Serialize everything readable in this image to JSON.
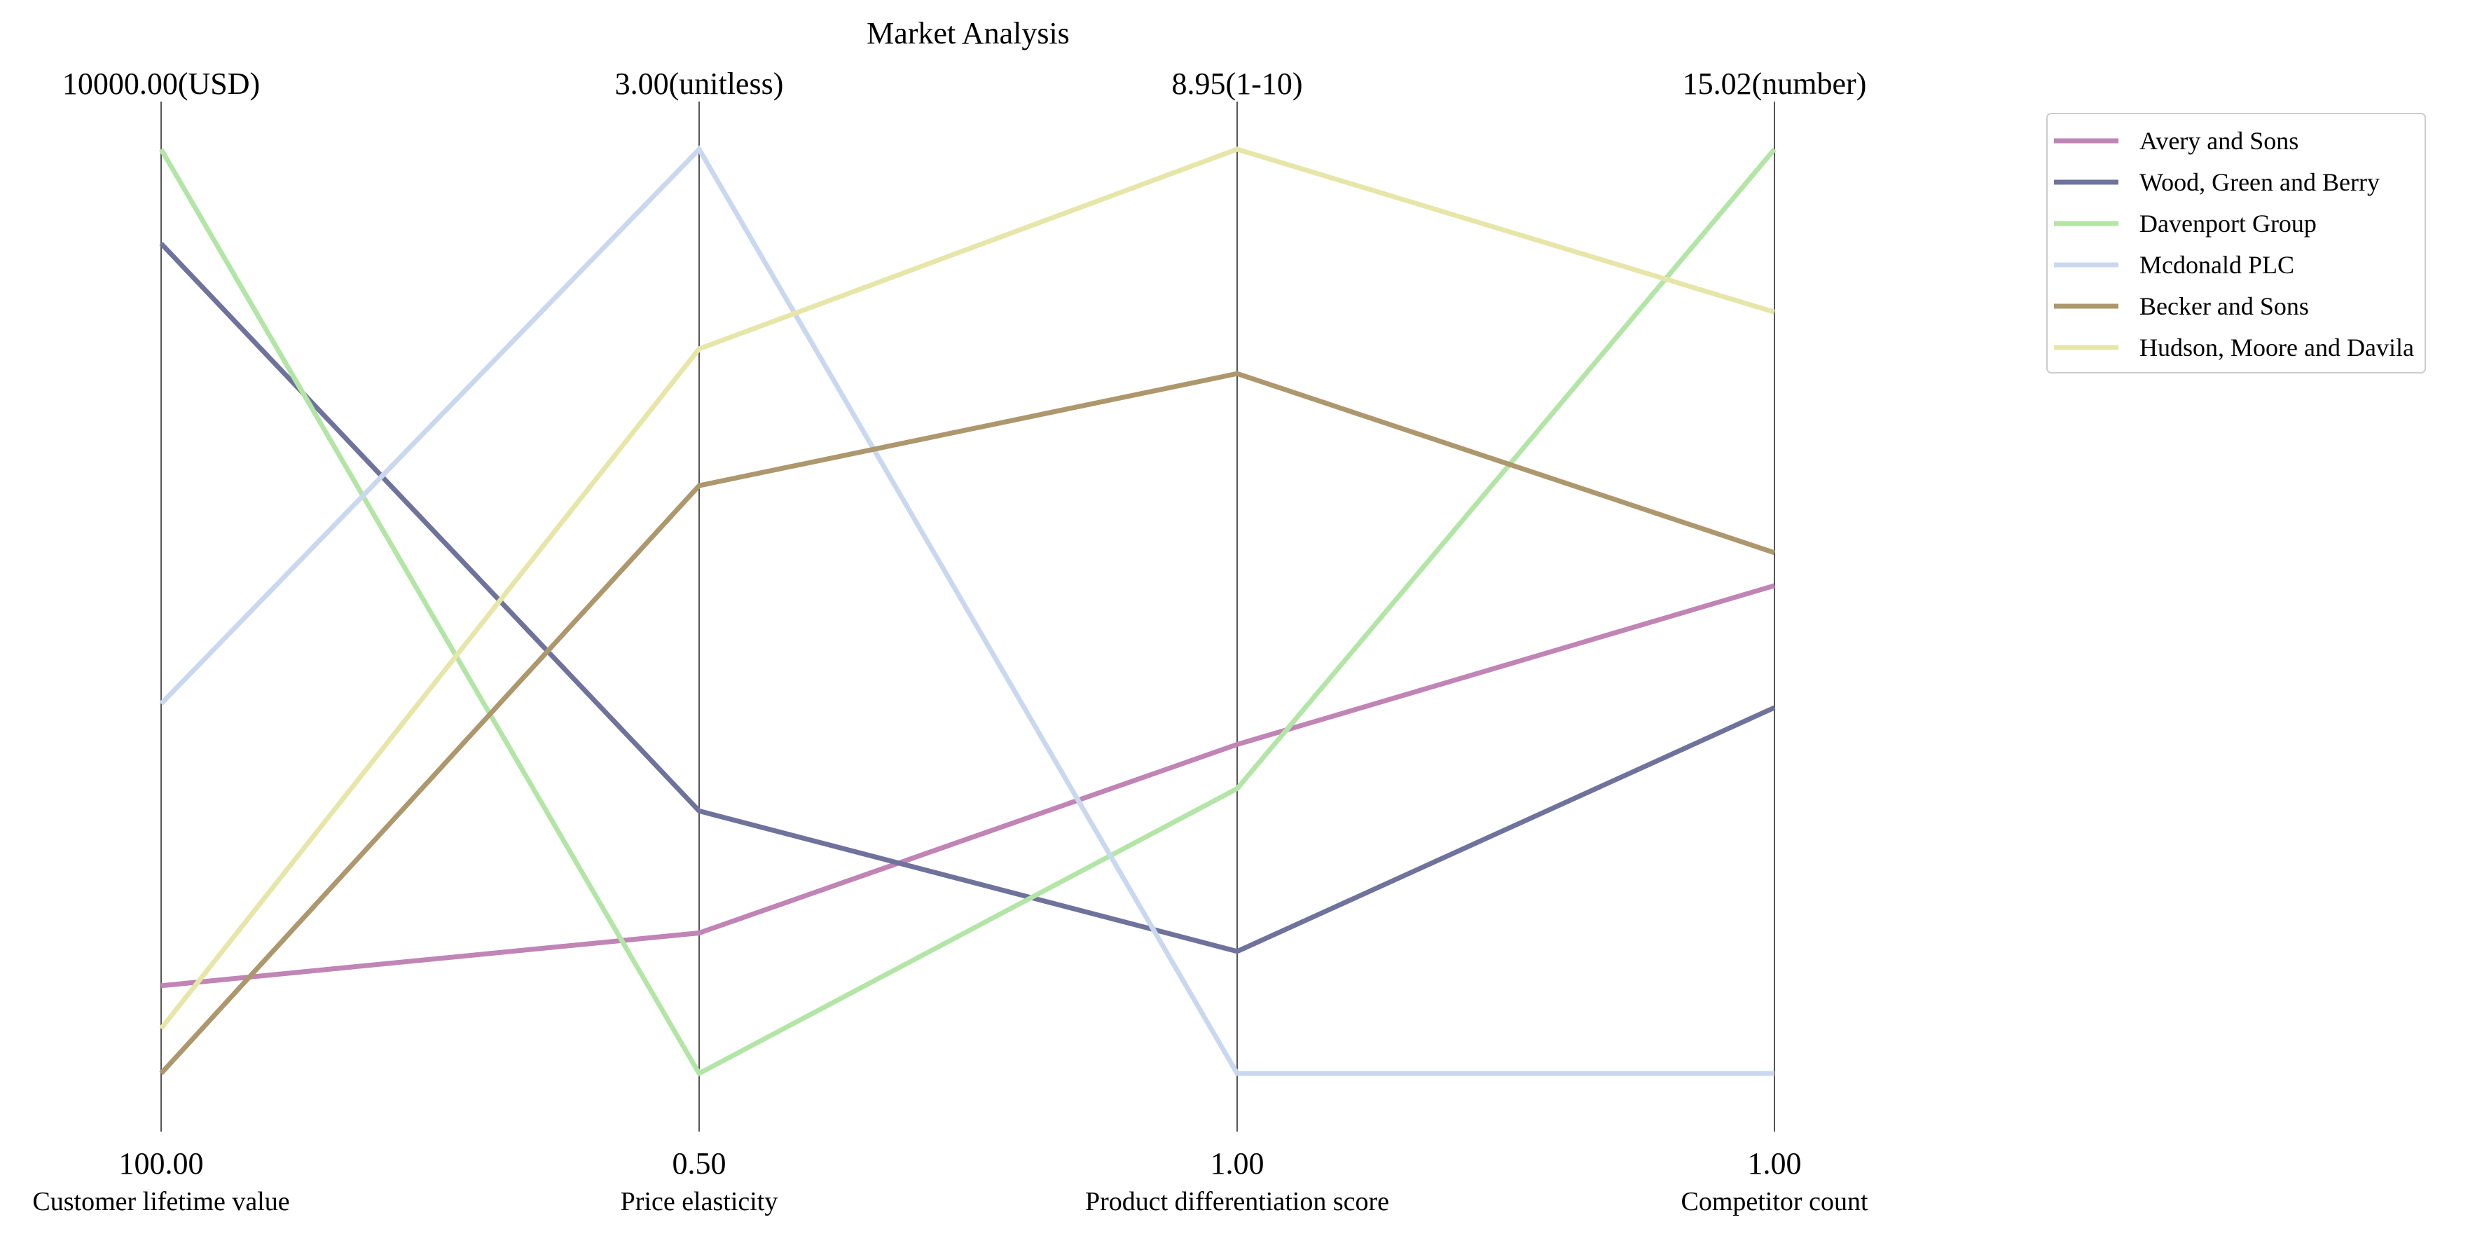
{
  "chart_data": {
    "type": "parallel-coordinates",
    "title": "Market Analysis",
    "axes": [
      {
        "label": "Customer lifetime value",
        "min_label": "100.00",
        "max_label": "10000.00(USD)",
        "min": 100.0,
        "max": 10000.0
      },
      {
        "label": "Price elasticity",
        "min_label": "0.50",
        "max_label": "3.00(unitless)",
        "min": 0.5,
        "max": 3.0
      },
      {
        "label": "Product differentiation score",
        "min_label": "1.00",
        "max_label": "8.95(1-10)",
        "min": 1.0,
        "max": 8.95
      },
      {
        "label": "Competitor count",
        "min_label": "1.00",
        "max_label": "15.02(number)",
        "min": 1.0,
        "max": 15.02
      }
    ],
    "series": [
      {
        "name": "Avery and Sons",
        "color": "#c084b5",
        "values": [
          1040,
          0.88,
          3.83,
          8.4
        ]
      },
      {
        "name": "Wood, Green and Berry",
        "color": "#6f729b",
        "values": [
          8990,
          1.21,
          2.05,
          6.55
        ]
      },
      {
        "name": "Davenport Group",
        "color": "#b3e5a6",
        "values": [
          10000,
          0.5,
          3.45,
          15.02
        ]
      },
      {
        "name": "Mcdonald PLC",
        "color": "#c9d8ee",
        "values": [
          4060,
          3.0,
          1.0,
          1.0
        ]
      },
      {
        "name": "Becker and Sons",
        "color": "#ad976d",
        "values": [
          100,
          2.09,
          7.02,
          8.9
        ]
      },
      {
        "name": "Hudson, Moore and Davila",
        "color": "#e7e6a9",
        "values": [
          580,
          2.46,
          8.95,
          12.55
        ]
      }
    ],
    "legend_position": "top-right",
    "grid": false
  }
}
